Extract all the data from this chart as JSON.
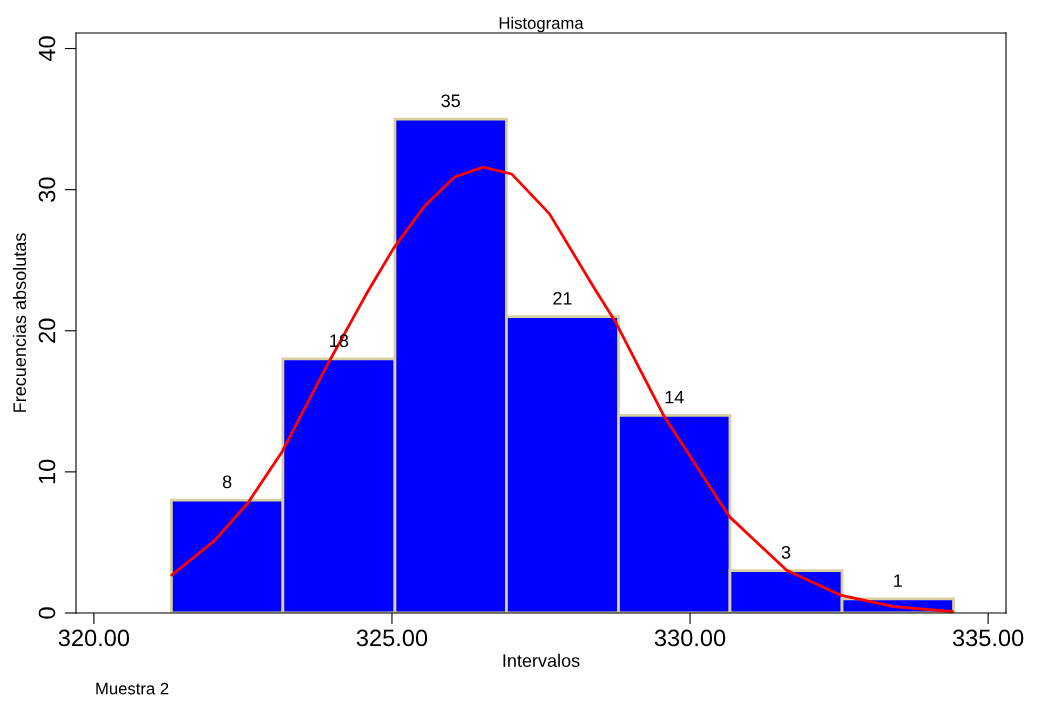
{
  "chart_data": {
    "type": "histogram",
    "title": "Histograma",
    "xlabel": "Intervalos",
    "ylabel": "Frecuencias absolutas",
    "annotations": [
      "Muestra 2"
    ],
    "bins": [
      321.3,
      323.17,
      325.05,
      326.92,
      328.8,
      330.67,
      332.55,
      334.42
    ],
    "values": [
      8,
      18,
      35,
      21,
      14,
      3,
      1
    ],
    "color": "#0000ff",
    "value_labels": [
      "8",
      "18",
      "35",
      "21",
      "14",
      "3",
      "1"
    ],
    "series": [
      {
        "type": "line",
        "color": "#ff0000",
        "x": [
          321.31,
          322.01,
          322.58,
          323.16,
          323.93,
          324.57,
          325.02,
          325.54,
          326.05,
          326.53,
          327.01,
          327.64,
          328.41,
          328.74,
          329.57,
          330.66,
          331.62,
          332.52,
          333.42,
          334.4
        ],
        "values": [
          2.7,
          5.07,
          7.78,
          11.45,
          17.7,
          22.6,
          25.8,
          28.8,
          30.9,
          31.6,
          31.1,
          28.3,
          22.9,
          20.7,
          13.9,
          6.83,
          3.03,
          1.27,
          0.45,
          0.1
        ]
      }
    ],
    "xlim": [
      319.7,
      335.3
    ],
    "ylim": [
      0,
      41.1
    ],
    "xticks": [
      {
        "value": 320,
        "label": "320.00"
      },
      {
        "value": 325,
        "label": "325.00"
      },
      {
        "value": 330,
        "label": "330.00"
      },
      {
        "value": 335,
        "label": "335.00"
      }
    ],
    "yticks": [
      0,
      10,
      20,
      30,
      40
    ],
    "grid": false
  }
}
